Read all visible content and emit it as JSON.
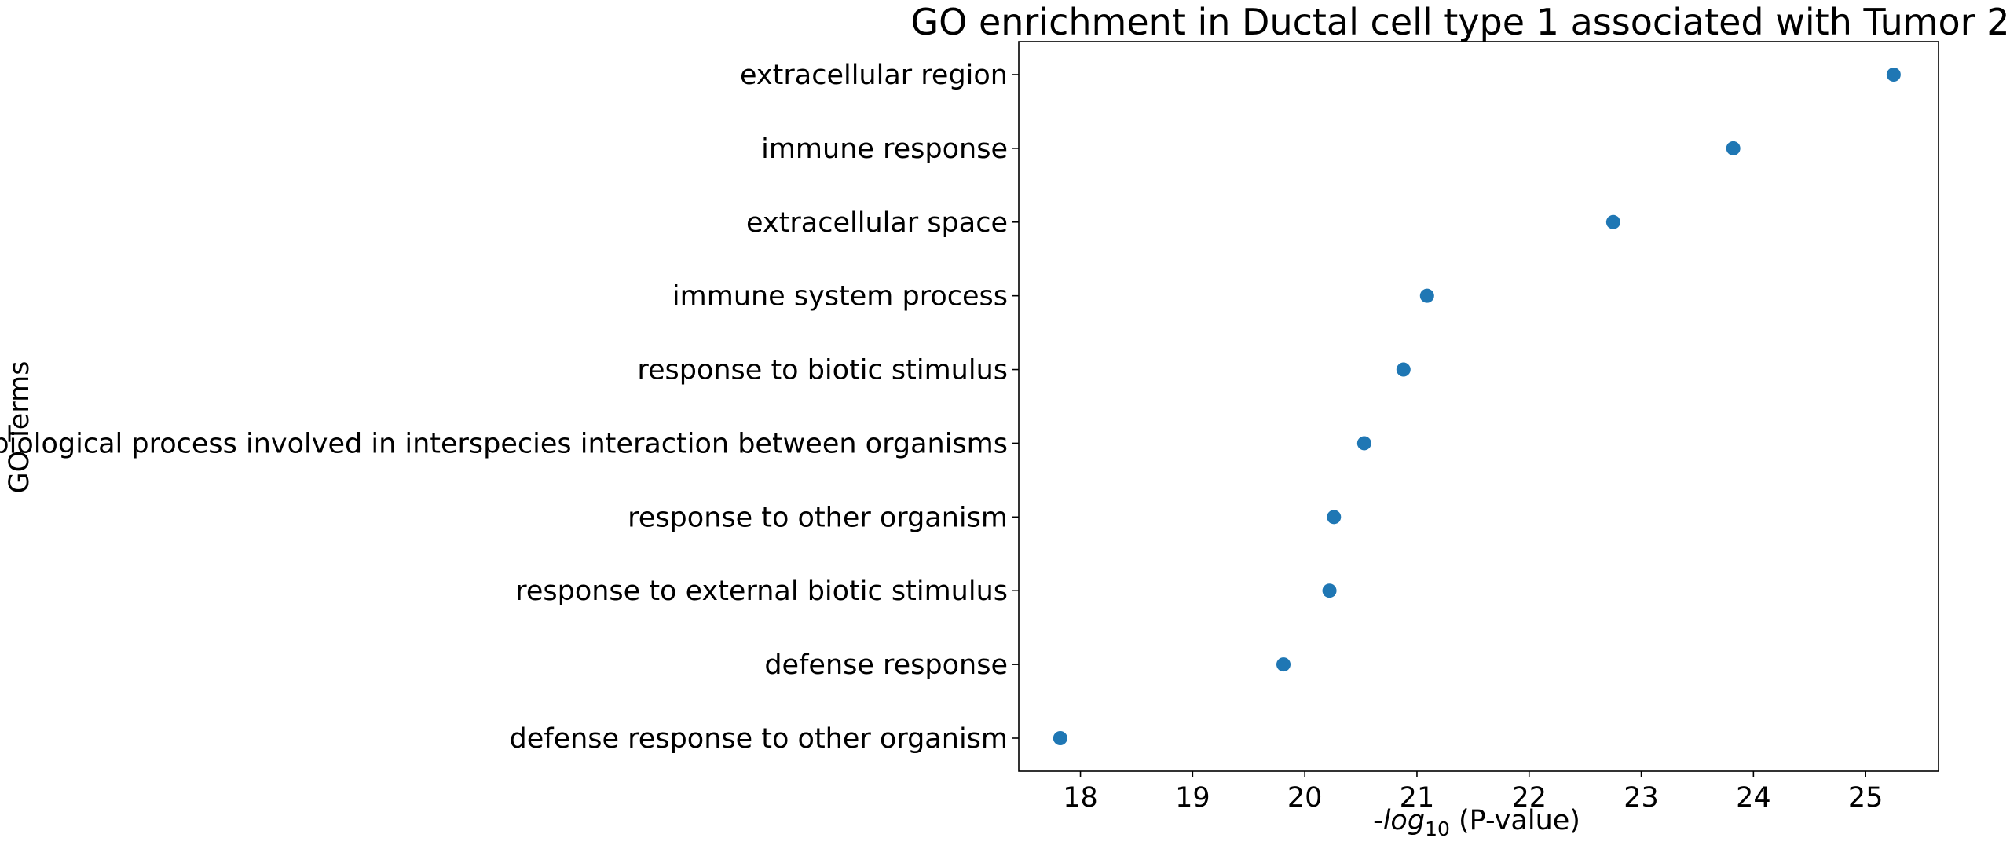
{
  "chart_data": {
    "type": "scatter",
    "title": "GO enrichment in Ductal cell type 1 associated with Tumor 2",
    "xlabel": {
      "prefix": "-",
      "log": "log",
      "subscript": "10",
      "suffix": " (P-value)"
    },
    "ylabel": "GO Terms",
    "xlim": [
      17.45,
      25.65
    ],
    "xticks": [
      "18",
      "19",
      "20",
      "21",
      "22",
      "23",
      "24",
      "25"
    ],
    "grid": false,
    "marker_color": "#1f77b4",
    "categories": [
      "extracellular region",
      "immune response",
      "extracellular space",
      "immune system process",
      "response to biotic stimulus",
      "biological process involved in interspecies interaction between organisms",
      "response to other organism",
      "response to external biotic stimulus",
      "defense response",
      "defense response to other organism"
    ],
    "values": [
      25.25,
      23.82,
      22.75,
      21.09,
      20.88,
      20.53,
      20.26,
      20.22,
      19.81,
      17.82
    ]
  }
}
